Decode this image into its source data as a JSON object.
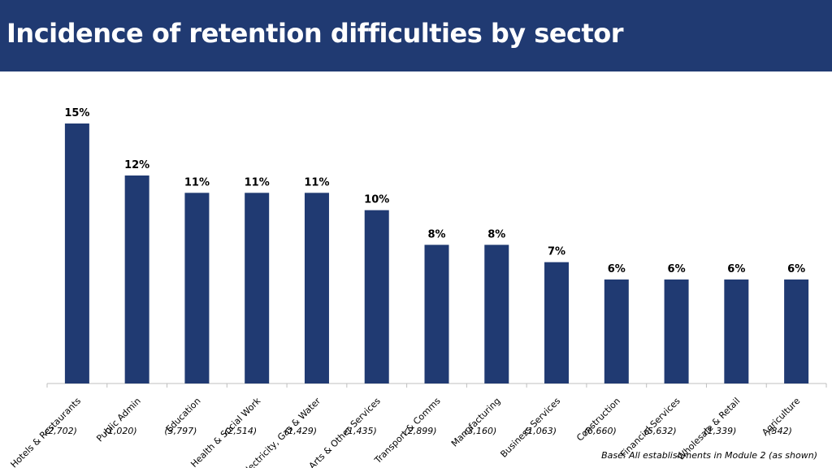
{
  "header": {
    "title": "Incidence of retention difficulties by sector"
  },
  "colors": {
    "header_bg": "#203a72",
    "bar": "#203a72"
  },
  "footnote": "Base: All establishments in Module 2 (as shown)",
  "chart_data": {
    "type": "bar",
    "title": "Incidence of retention difficulties by sector",
    "xlabel": "",
    "ylabel": "",
    "ylim": [
      0,
      16
    ],
    "grid": false,
    "legend": "none",
    "categories": [
      "Hotels & Restaurants",
      "Public Admin",
      "Education",
      "Health & Social Work",
      "Electricity, Gas & Water",
      "Arts & Other Services",
      "Transport & Comms",
      "Manufacturing",
      "Business Services",
      "Construction",
      "Financial Services",
      "Wholesale & Retail",
      "Agriculture"
    ],
    "bases": [
      "(2,702)",
      "(1,020)",
      "(3,797)",
      "(2,514)",
      "(1,429)",
      "(1,435)",
      "(2,899)",
      "(3,160)",
      "(1,063)",
      "(6,660)",
      "(5,632)",
      "(1,339)",
      "(342)"
    ],
    "values": [
      15,
      12,
      11,
      11,
      11,
      10,
      8,
      8,
      7,
      6,
      6,
      6,
      6
    ],
    "data_labels": [
      "15%",
      "12%",
      "11%",
      "11%",
      "11%",
      "10%",
      "8%",
      "8%",
      "7%",
      "6%",
      "6%",
      "6%",
      "6%"
    ]
  }
}
